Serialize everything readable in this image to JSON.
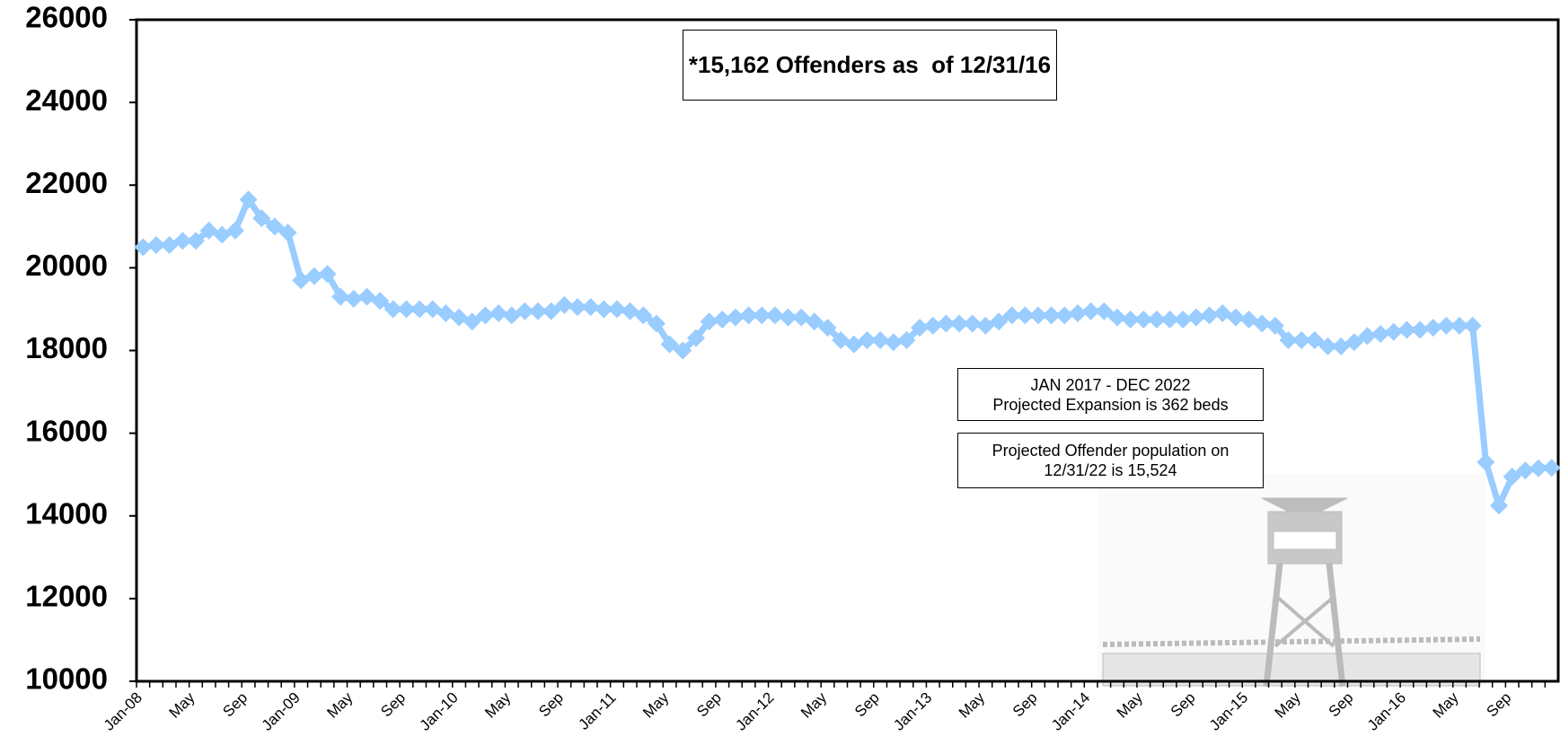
{
  "chart_data": {
    "type": "line",
    "categories": [
      "Jan-08",
      null,
      null,
      null,
      "May",
      null,
      null,
      null,
      "Sep",
      null,
      null,
      null,
      "Jan-09",
      null,
      null,
      null,
      "May",
      null,
      null,
      null,
      "Sep",
      null,
      null,
      null,
      "Jan-10",
      null,
      null,
      null,
      "May",
      null,
      null,
      null,
      "Sep",
      null,
      null,
      null,
      "Jan-11",
      null,
      null,
      null,
      "May",
      null,
      null,
      null,
      "Sep",
      null,
      null,
      null,
      "Jan-12",
      null,
      null,
      null,
      "May",
      null,
      null,
      null,
      "Sep",
      null,
      null,
      null,
      "Jan-13",
      null,
      null,
      null,
      "May",
      null,
      null,
      null,
      "Sep",
      null,
      null,
      null,
      "Jan-14",
      null,
      null,
      null,
      "May",
      null,
      null,
      null,
      "Sep",
      null,
      null,
      null,
      "Jan-15",
      null,
      null,
      null,
      "May",
      null,
      null,
      null,
      "Sep",
      null,
      null,
      null,
      "Jan-16",
      null,
      null,
      null,
      "May",
      null,
      null,
      null,
      "Sep",
      null,
      null,
      null
    ],
    "values": [
      20500,
      20550,
      20550,
      20650,
      20650,
      20900,
      20800,
      20900,
      21650,
      21200,
      21000,
      20850,
      19700,
      19800,
      19850,
      19300,
      19250,
      19300,
      19200,
      19000,
      19000,
      19000,
      19000,
      18900,
      18800,
      18700,
      18850,
      18900,
      18850,
      18950,
      18950,
      18950,
      19100,
      19050,
      19050,
      19000,
      19000,
      18950,
      18850,
      18650,
      18150,
      18000,
      18300,
      18700,
      18750,
      18800,
      18850,
      18850,
      18850,
      18800,
      18800,
      18700,
      18550,
      18250,
      18150,
      18250,
      18250,
      18200,
      18250,
      18550,
      18600,
      18650,
      18650,
      18650,
      18600,
      18700,
      18850,
      18850,
      18850,
      18850,
      18850,
      18900,
      18950,
      18950,
      18800,
      18750,
      18750,
      18750,
      18750,
      18750,
      18800,
      18850,
      18900,
      18800,
      18750,
      18650,
      18600,
      18250,
      18250,
      18250,
      18100,
      18100,
      18200,
      18350,
      18400,
      18450,
      18500,
      18500,
      18550,
      18600,
      18600,
      18600,
      15300,
      14250,
      14950,
      15100,
      15150,
      15162
    ],
    "color": "#99ccff",
    "ylim": [
      10000,
      26000
    ],
    "yticks": [
      10000,
      12000,
      14000,
      16000,
      18000,
      20000,
      22000,
      24000,
      26000
    ],
    "annotations": [
      "*15,162 Offenders as  of 12/31/16",
      "JAN 2017 - DEC 2022\nProjected Expansion is 362 beds",
      "Projected Offender population on\n12/31/22 is 15,524"
    ]
  }
}
